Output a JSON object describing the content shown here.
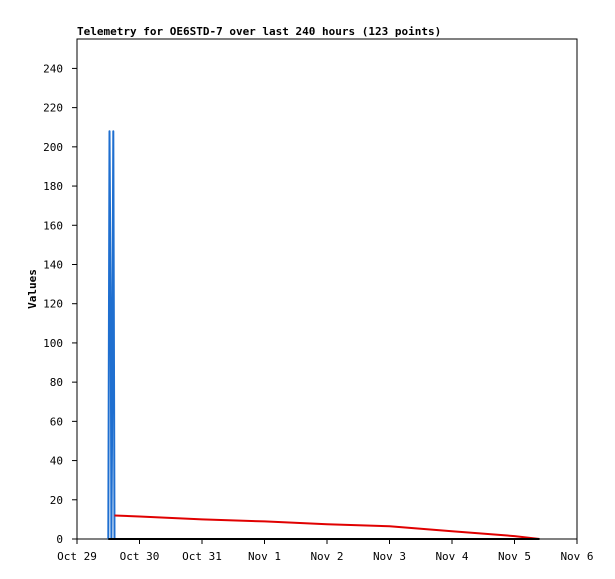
{
  "chart_data": {
    "type": "line",
    "title": "Telemetry for OE6STD-7 over last 240 hours (123 points)",
    "ylabel": "Values",
    "xlabel": "",
    "ylim": [
      0,
      255
    ],
    "xlim": [
      0,
      8
    ],
    "yticks": [
      0,
      20,
      40,
      60,
      80,
      100,
      120,
      140,
      160,
      180,
      200,
      220,
      240
    ],
    "xticks": [
      {
        "x": 0,
        "label": "Oct 29"
      },
      {
        "x": 1,
        "label": "Oct 30"
      },
      {
        "x": 2,
        "label": "Oct 31"
      },
      {
        "x": 3,
        "label": "Nov 1"
      },
      {
        "x": 4,
        "label": "Nov 2"
      },
      {
        "x": 5,
        "label": "Nov 3"
      },
      {
        "x": 6,
        "label": "Nov 4"
      },
      {
        "x": 7,
        "label": "Nov 5"
      },
      {
        "x": 8,
        "label": "Nov 6"
      }
    ],
    "grid": false,
    "series": [
      {
        "color": "#1f6fd0",
        "x": [
          0.5,
          0.52,
          0.54,
          0.55,
          0.56,
          0.57,
          0.58,
          0.6
        ],
        "y": [
          0,
          208,
          104,
          0,
          48,
          128,
          208,
          0
        ]
      },
      {
        "color": "#e00000",
        "x": [
          0.6,
          1.0,
          2.0,
          3.0,
          4.0,
          5.0,
          6.0,
          7.0,
          7.4
        ],
        "y": [
          12,
          11.5,
          10,
          9,
          7.5,
          6.5,
          4,
          1.5,
          0
        ]
      },
      {
        "color": "#000000",
        "x": [
          0.5,
          7.4
        ],
        "y": [
          0,
          0
        ]
      }
    ]
  }
}
